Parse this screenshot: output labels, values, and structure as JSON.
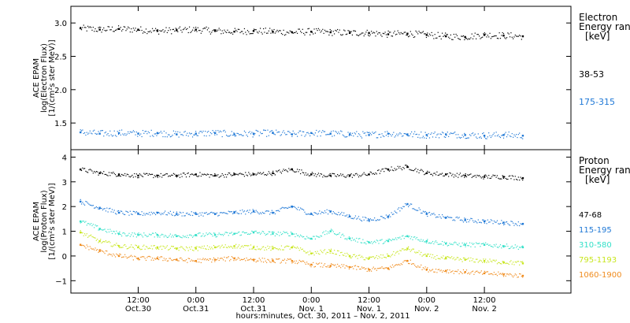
{
  "chart_data": [
    {
      "type": "scatter",
      "panel": "electron",
      "ylabel_lines": [
        "ACE EPAM",
        "log(Electron Flux)",
        "[1/(cm²s ster MeV)]"
      ],
      "ylim": [
        1.1,
        3.25
      ],
      "yticks": [
        1.5,
        2.0,
        2.5,
        3.0
      ],
      "ytick_labels": [
        "1.5",
        "2.0",
        "2.5",
        "3.0"
      ],
      "legend_title": [
        "Electron",
        "Energy range",
        "[keV]"
      ],
      "series": [
        {
          "name": "38-53",
          "color": "#000000",
          "x": [
            0,
            4,
            8,
            12,
            16,
            20,
            24,
            28,
            32,
            36,
            40,
            44,
            48,
            52,
            56,
            60,
            64,
            68,
            72,
            76,
            80,
            84,
            88,
            92
          ],
          "y": [
            2.92,
            2.9,
            2.91,
            2.9,
            2.88,
            2.89,
            2.9,
            2.88,
            2.87,
            2.88,
            2.87,
            2.86,
            2.87,
            2.86,
            2.85,
            2.85,
            2.83,
            2.84,
            2.82,
            2.8,
            2.79,
            2.82,
            2.81,
            2.8
          ]
        },
        {
          "name": "175-315",
          "color": "#1f78d6",
          "x": [
            0,
            4,
            8,
            12,
            16,
            20,
            24,
            28,
            32,
            36,
            40,
            44,
            48,
            52,
            56,
            60,
            64,
            68,
            72,
            76,
            80,
            84,
            88,
            92
          ],
          "y": [
            1.36,
            1.34,
            1.35,
            1.34,
            1.35,
            1.33,
            1.34,
            1.35,
            1.33,
            1.34,
            1.35,
            1.33,
            1.35,
            1.34,
            1.33,
            1.32,
            1.34,
            1.33,
            1.32,
            1.33,
            1.32,
            1.31,
            1.32,
            1.31
          ]
        }
      ]
    },
    {
      "type": "scatter",
      "panel": "proton",
      "ylabel_lines": [
        "ACE EPAM",
        "log(Proton Flux)",
        "[1/(cm²s ster MeV)]"
      ],
      "ylim": [
        -1.5,
        4.3
      ],
      "yticks": [
        -1,
        0,
        1,
        2,
        3,
        4
      ],
      "ytick_labels": [
        "−1",
        "0",
        "1",
        "2",
        "3",
        "4"
      ],
      "legend_title": [
        "Proton",
        "Energy range",
        "[keV]"
      ],
      "series": [
        {
          "name": "47-68",
          "color": "#000000",
          "x": [
            0,
            4,
            8,
            12,
            16,
            20,
            24,
            28,
            32,
            36,
            40,
            44,
            48,
            52,
            56,
            60,
            64,
            68,
            72,
            76,
            80,
            84,
            88,
            92
          ],
          "y": [
            3.5,
            3.35,
            3.3,
            3.25,
            3.25,
            3.25,
            3.3,
            3.25,
            3.3,
            3.3,
            3.35,
            3.5,
            3.3,
            3.25,
            3.25,
            3.3,
            3.5,
            3.6,
            3.35,
            3.3,
            3.25,
            3.2,
            3.2,
            3.15
          ]
        },
        {
          "name": "115-195",
          "color": "#1f78d6",
          "x": [
            0,
            4,
            8,
            12,
            16,
            20,
            24,
            28,
            32,
            36,
            40,
            44,
            48,
            52,
            56,
            60,
            64,
            68,
            72,
            76,
            80,
            84,
            88,
            92
          ],
          "y": [
            2.2,
            1.95,
            1.75,
            1.7,
            1.75,
            1.7,
            1.7,
            1.7,
            1.75,
            1.8,
            1.75,
            2.0,
            1.7,
            1.8,
            1.6,
            1.45,
            1.6,
            2.1,
            1.7,
            1.55,
            1.45,
            1.4,
            1.35,
            1.3
          ]
        },
        {
          "name": "310-580",
          "color": "#33e0c8",
          "x": [
            0,
            4,
            8,
            12,
            16,
            20,
            24,
            28,
            32,
            36,
            40,
            44,
            48,
            52,
            56,
            60,
            64,
            68,
            72,
            76,
            80,
            84,
            88,
            92
          ],
          "y": [
            1.4,
            1.1,
            0.9,
            0.85,
            0.85,
            0.8,
            0.85,
            0.85,
            0.9,
            0.95,
            0.9,
            0.9,
            0.7,
            1.0,
            0.7,
            0.55,
            0.6,
            0.8,
            0.6,
            0.5,
            0.45,
            0.45,
            0.4,
            0.35
          ]
        },
        {
          "name": "795-1193",
          "color": "#c8e61e",
          "x": [
            0,
            4,
            8,
            12,
            16,
            20,
            24,
            28,
            32,
            36,
            40,
            44,
            48,
            52,
            56,
            60,
            64,
            68,
            72,
            76,
            80,
            84,
            88,
            92
          ],
          "y": [
            0.95,
            0.6,
            0.4,
            0.35,
            0.35,
            0.3,
            0.3,
            0.35,
            0.4,
            0.35,
            0.3,
            0.35,
            0.1,
            0.2,
            0.0,
            -0.1,
            0.0,
            0.3,
            0.0,
            -0.1,
            -0.15,
            -0.2,
            -0.25,
            -0.3
          ]
        },
        {
          "name": "1060-1900",
          "color": "#f08c1e",
          "x": [
            0,
            4,
            8,
            12,
            16,
            20,
            24,
            28,
            32,
            36,
            40,
            44,
            48,
            52,
            56,
            60,
            64,
            68,
            72,
            76,
            80,
            84,
            88,
            92
          ],
          "y": [
            0.45,
            0.2,
            0.0,
            -0.1,
            -0.1,
            -0.15,
            -0.2,
            -0.15,
            -0.1,
            -0.15,
            -0.2,
            -0.2,
            -0.35,
            -0.4,
            -0.45,
            -0.55,
            -0.5,
            -0.2,
            -0.55,
            -0.6,
            -0.65,
            -0.7,
            -0.75,
            -0.8
          ]
        }
      ]
    }
  ],
  "xaxis": {
    "xlim": [
      -2,
      102
    ],
    "ticks": [
      {
        "x": 12,
        "l1": "12:00",
        "l2": "Oct.30"
      },
      {
        "x": 24,
        "l1": "0:00",
        "l2": "Oct.31"
      },
      {
        "x": 36,
        "l1": "12:00",
        "l2": "Oct.31"
      },
      {
        "x": 48,
        "l1": "0:00",
        "l2": "Nov. 1"
      },
      {
        "x": 60,
        "l1": "12:00",
        "l2": "Nov. 1"
      },
      {
        "x": 72,
        "l1": "0:00",
        "l2": "Nov. 2"
      },
      {
        "x": 84,
        "l1": "12:00",
        "l2": "Nov. 2"
      }
    ],
    "label": "hours:minutes, Oct. 30, 2011 – Nov. 2, 2011"
  }
}
